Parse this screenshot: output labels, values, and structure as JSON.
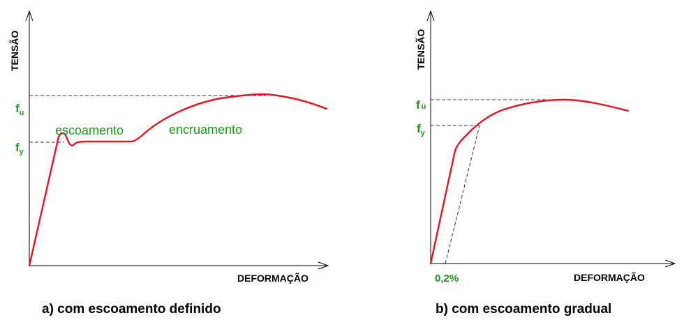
{
  "colors": {
    "curve": "#e8141c",
    "label_green": "#1a9a1a",
    "axis": "#000000",
    "dashed": "#333333"
  },
  "panel_a": {
    "y_axis_label": "TENSÃO",
    "x_axis_label": "DEFORMAÇÃO",
    "fu_base": "f",
    "fu_sub": "u",
    "fy_base": "f",
    "fy_sub": "y",
    "yield_label": "escoamento",
    "hardening_label": "encruamento",
    "caption": "a) com escoamento definido"
  },
  "panel_b": {
    "y_axis_label": "TENSÃO",
    "x_axis_label": "DEFORMAÇÃO",
    "fu_base": "f",
    "fu_sub": "u",
    "fy_base": "f",
    "fy_sub": "y",
    "offset_label": "0,2%",
    "caption": "b) com escoamento gradual"
  }
}
